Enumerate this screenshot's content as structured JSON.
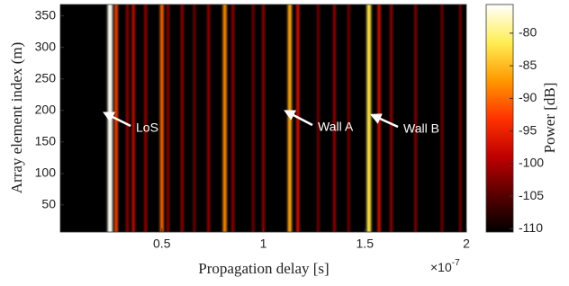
{
  "chart_data": {
    "type": "heatmap",
    "x_label": "Propagation delay [s]",
    "y_label": "Array element index (m)",
    "x_multiplier": {
      "base": "×10",
      "exponent": "-7"
    },
    "xlim": [
      0,
      2
    ],
    "xticks": [
      0.5,
      1,
      1.5,
      2
    ],
    "ylim": [
      7,
      368
    ],
    "yticks": [
      50,
      100,
      150,
      200,
      250,
      300,
      350
    ],
    "colorbar_label": "Power [dB]",
    "clim": [
      -110.5,
      -75.6
    ],
    "cticks": [
      -110,
      -105,
      -100,
      -95,
      -90,
      -85,
      -80
    ],
    "colormap": [
      "#000000",
      "#5a0000",
      "#c00000",
      "#ff3300",
      "#ff9900",
      "#ffee55",
      "#ffffff"
    ],
    "ridges": {
      "x": [
        0.245,
        0.275,
        0.33,
        0.36,
        0.42,
        0.5,
        0.53,
        0.6,
        0.66,
        0.73,
        0.81,
        0.85,
        0.95,
        1.0,
        1.13,
        1.17,
        1.27,
        1.35,
        1.42,
        1.52,
        1.57,
        1.63,
        1.75,
        1.88,
        1.97
      ],
      "values": [
        -76,
        -92,
        -100,
        -97,
        -100,
        -90,
        -100,
        -100,
        -102,
        -100,
        -88,
        -100,
        -102,
        -100,
        -86,
        -96,
        -102,
        -100,
        -102,
        -82,
        -96,
        -100,
        -101,
        -102,
        -102
      ]
    },
    "annotations": [
      "LoS",
      "Wall A",
      "Wall B"
    ]
  }
}
